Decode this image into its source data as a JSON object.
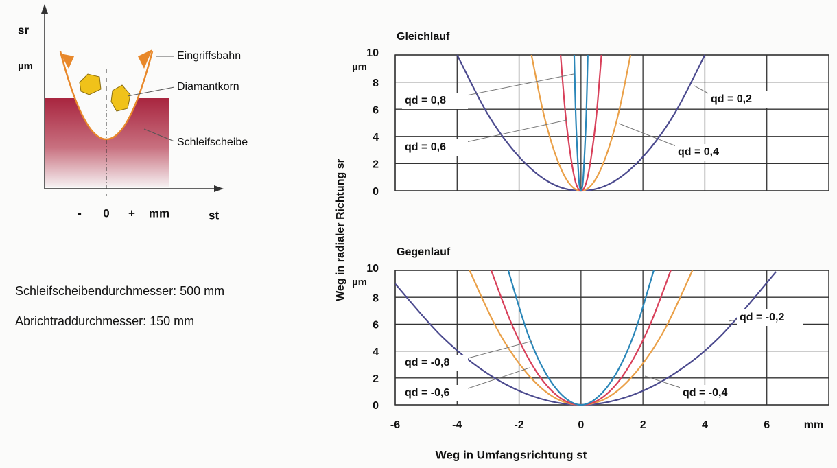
{
  "diagram": {
    "y_axis_label": "sr",
    "y_unit": "µm",
    "x_labels": [
      "-",
      "0",
      "+",
      "mm"
    ],
    "x_axis_label": "st",
    "callouts": [
      "Eingriffsbahn",
      "Diamantkorn",
      "Schleifscheibe"
    ]
  },
  "notes": [
    "Schleifscheibendurchmesser: 500 mm",
    "Abrichtraddurchmesser: 150 mm"
  ],
  "chart_data": [
    {
      "type": "line",
      "title": "Gleichlauf",
      "ylabel": "Weg in radialer Richtung sr",
      "y_unit": "µm",
      "xlim": [
        -6,
        8
      ],
      "ylim": [
        0,
        10
      ],
      "xticks": [
        -6,
        -4,
        -2,
        0,
        2,
        4,
        6
      ],
      "yticks": [
        0,
        2,
        4,
        6,
        8,
        10
      ],
      "grid": true,
      "series": [
        {
          "name": "qd = 0,2",
          "color": "#4b4a8e",
          "x": [
            -4,
            -3,
            -2,
            -1,
            0,
            1,
            2,
            3,
            4
          ],
          "values": [
            10,
            5.6,
            2.5,
            0.6,
            0,
            0.6,
            2.5,
            5.6,
            10
          ]
        },
        {
          "name": "qd = 0,4",
          "color": "#eaa048",
          "x": [
            -1.6,
            -1.2,
            -0.8,
            -0.4,
            0,
            0.4,
            0.8,
            1.2,
            1.6
          ],
          "values": [
            10,
            5.6,
            2.5,
            0.6,
            0,
            0.6,
            2.5,
            5.6,
            10
          ]
        },
        {
          "name": "qd = 0,6",
          "color": "#d8405a",
          "x": [
            -0.66,
            -0.5,
            -0.33,
            -0.17,
            0,
            0.17,
            0.33,
            0.5,
            0.66
          ],
          "values": [
            10,
            5.6,
            2.5,
            0.6,
            0,
            0.6,
            2.5,
            5.6,
            10
          ]
        },
        {
          "name": "qd = 0,8",
          "color": "#2a86b8",
          "x": [
            -0.22,
            -0.17,
            -0.11,
            -0.06,
            0,
            0.06,
            0.11,
            0.17,
            0.22
          ],
          "values": [
            10,
            5.6,
            2.5,
            0.6,
            0,
            0.6,
            2.5,
            5.6,
            10
          ]
        }
      ]
    },
    {
      "type": "line",
      "title": "Gegenlauf",
      "xlabel": "Weg in Umfangsrichtung st",
      "x_unit": "mm",
      "y_unit": "µm",
      "xlim": [
        -6,
        8
      ],
      "ylim": [
        0,
        10
      ],
      "xticks": [
        -6,
        -4,
        -2,
        0,
        2,
        4,
        6
      ],
      "yticks": [
        0,
        2,
        4,
        6,
        8,
        10
      ],
      "grid": true,
      "series": [
        {
          "name": "qd = -0,2",
          "color": "#4b4a8e",
          "x": [
            -6,
            -4.5,
            -3,
            -1.5,
            0,
            1.5,
            3,
            4.5,
            6.3
          ],
          "values": [
            9,
            5.1,
            2.3,
            0.6,
            0,
            0.6,
            2.3,
            5.1,
            9.9
          ]
        },
        {
          "name": "qd = -0,4",
          "color": "#eaa048",
          "x": [
            -3.6,
            -2.7,
            -1.8,
            -0.9,
            0,
            0.9,
            1.8,
            2.7,
            3.6
          ],
          "values": [
            10,
            5.6,
            2.5,
            0.6,
            0,
            0.6,
            2.5,
            5.6,
            10
          ]
        },
        {
          "name": "qd = -0,6",
          "color": "#d8405a",
          "x": [
            -2.9,
            -2.2,
            -1.45,
            -0.72,
            0,
            0.72,
            1.45,
            2.2,
            2.9
          ],
          "values": [
            10,
            5.8,
            2.5,
            0.6,
            0,
            0.6,
            2.5,
            5.8,
            10
          ]
        },
        {
          "name": "qd = -0,8",
          "color": "#2a86b8",
          "x": [
            -2.35,
            -1.75,
            -1.2,
            -0.6,
            0,
            0.6,
            1.2,
            1.75,
            2.35
          ],
          "values": [
            10,
            5.5,
            2.6,
            0.7,
            0,
            0.7,
            2.6,
            5.5,
            10
          ]
        }
      ]
    }
  ]
}
